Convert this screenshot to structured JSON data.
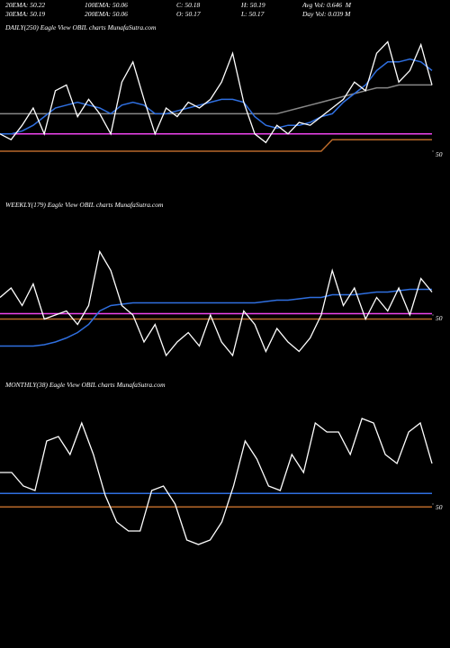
{
  "header": {
    "stats": [
      [
        "20EMA: 50.22",
        "100EMA: 50.06",
        "C: 50.18",
        "H: 50.19",
        "Avg Vol: 0.646  M"
      ],
      [
        "30EMA: 50.19",
        "200EMA: 50.06",
        "O: 50.17",
        "L: 50.17",
        "Day Vol: 0.039 M"
      ]
    ]
  },
  "chart_data": [
    {
      "type": "line",
      "title": "DAILY(250) Eagle  View  OBIL  charts MunafaSutra.com",
      "ylim": [
        49.9,
        50.4
      ],
      "yticks": [
        50
      ],
      "series": [
        {
          "color": "#888888",
          "values": [
            50.13,
            50.13,
            50.13,
            50.13,
            50.13,
            50.13,
            50.13,
            50.13,
            50.13,
            50.13,
            50.13,
            50.13,
            50.13,
            50.13,
            50.13,
            50.13,
            50.13,
            50.13,
            50.13,
            50.13,
            50.13,
            50.13,
            50.13,
            50.13,
            50.13,
            50.13,
            50.14,
            50.15,
            50.16,
            50.17,
            50.18,
            50.19,
            50.2,
            50.21,
            50.22,
            50.22,
            50.23,
            50.23,
            50.23,
            50.23
          ]
        },
        {
          "color": "#ee44ee",
          "values": [
            50.06,
            50.06,
            50.06,
            50.06,
            50.06,
            50.06,
            50.06,
            50.06,
            50.06,
            50.06,
            50.06,
            50.06,
            50.06,
            50.06,
            50.06,
            50.06,
            50.06,
            50.06,
            50.06,
            50.06,
            50.06,
            50.06,
            50.06,
            50.06,
            50.06,
            50.06,
            50.06,
            50.06,
            50.06,
            50.06,
            50.06,
            50.06,
            50.06,
            50.06,
            50.06,
            50.06,
            50.06,
            50.06,
            50.06,
            50.06
          ]
        },
        {
          "color": "#b8692a",
          "values": [
            50.0,
            50.0,
            50.0,
            50.0,
            50.0,
            50.0,
            50.0,
            50.0,
            50.0,
            50.0,
            50.0,
            50.0,
            50.0,
            50.0,
            50.0,
            50.0,
            50.0,
            50.0,
            50.0,
            50.0,
            50.0,
            50.0,
            50.0,
            50.0,
            50.0,
            50.0,
            50.0,
            50.0,
            50.0,
            50.0,
            50.04,
            50.04,
            50.04,
            50.04,
            50.04,
            50.04,
            50.04,
            50.04,
            50.04,
            50.04
          ]
        },
        {
          "color": "#2f6fe0",
          "values": [
            50.06,
            50.06,
            50.07,
            50.09,
            50.12,
            50.15,
            50.16,
            50.17,
            50.16,
            50.15,
            50.13,
            50.16,
            50.17,
            50.16,
            50.13,
            50.13,
            50.14,
            50.15,
            50.16,
            50.17,
            50.18,
            50.18,
            50.17,
            50.12,
            50.09,
            50.08,
            50.09,
            50.09,
            50.1,
            50.12,
            50.13,
            50.17,
            50.2,
            50.23,
            50.28,
            50.31,
            50.31,
            50.32,
            50.31,
            50.28
          ]
        },
        {
          "color": "#ffffff",
          "values": [
            50.06,
            50.04,
            50.09,
            50.15,
            50.06,
            50.21,
            50.23,
            50.12,
            50.18,
            50.13,
            50.06,
            50.24,
            50.31,
            50.18,
            50.06,
            50.15,
            50.12,
            50.17,
            50.15,
            50.18,
            50.24,
            50.34,
            50.17,
            50.06,
            50.03,
            50.09,
            50.06,
            50.1,
            50.09,
            50.12,
            50.15,
            50.18,
            50.24,
            50.21,
            50.34,
            50.38,
            50.24,
            50.28,
            50.37,
            50.23
          ]
        }
      ]
    },
    {
      "type": "line",
      "title": "WEEKLY(179) Eagle  View  OBIL  charts MunafaSutra.com",
      "ylim": [
        49.6,
        50.5
      ],
      "yticks": [
        50
      ],
      "series": [
        {
          "color": "#ee44ee",
          "values": [
            50.01,
            50.01,
            50.01,
            50.01,
            50.01,
            50.01,
            50.01,
            50.01,
            50.01,
            50.01,
            50.01,
            50.01,
            50.01,
            50.01,
            50.01,
            50.01,
            50.01,
            50.01,
            50.01,
            50.01,
            50.01,
            50.01,
            50.01,
            50.01,
            50.01,
            50.01,
            50.01,
            50.01,
            50.01,
            50.01,
            50.01,
            50.01,
            50.01,
            50.01,
            50.01,
            50.01,
            50.01,
            50.01,
            50.01,
            50.01
          ]
        },
        {
          "color": "#b8692a",
          "values": [
            49.97,
            49.97,
            49.97,
            49.97,
            49.97,
            49.97,
            49.97,
            49.97,
            49.97,
            49.97,
            49.97,
            49.97,
            49.97,
            49.97,
            49.97,
            49.97,
            49.97,
            49.97,
            49.97,
            49.97,
            49.97,
            49.97,
            49.97,
            49.97,
            49.97,
            49.97,
            49.97,
            49.97,
            49.97,
            49.97,
            49.97,
            49.97,
            49.97,
            49.97,
            49.97,
            49.97,
            49.97,
            49.97,
            49.97,
            49.97
          ]
        },
        {
          "color": "#2f6fe0",
          "values": [
            49.77,
            49.77,
            49.77,
            49.77,
            49.78,
            49.8,
            49.83,
            49.87,
            49.93,
            50.03,
            50.07,
            50.08,
            50.09,
            50.09,
            50.09,
            50.09,
            50.09,
            50.09,
            50.09,
            50.09,
            50.09,
            50.09,
            50.09,
            50.09,
            50.1,
            50.11,
            50.11,
            50.12,
            50.13,
            50.13,
            50.15,
            50.15,
            50.15,
            50.16,
            50.17,
            50.17,
            50.18,
            50.19,
            50.19,
            50.19
          ]
        },
        {
          "color": "#ffffff",
          "values": [
            50.13,
            50.2,
            50.07,
            50.23,
            49.97,
            50.0,
            50.03,
            49.93,
            50.07,
            50.47,
            50.33,
            50.07,
            50.0,
            49.8,
            49.93,
            49.7,
            49.8,
            49.87,
            49.77,
            50.0,
            49.8,
            49.7,
            50.03,
            49.93,
            49.73,
            49.9,
            49.8,
            49.73,
            49.83,
            50.0,
            50.33,
            50.07,
            50.2,
            49.97,
            50.13,
            50.03,
            50.2,
            50.0,
            50.27,
            50.17
          ]
        }
      ]
    },
    {
      "type": "line",
      "title": "MONTHLY(38) Eagle  View  OBIL  charts MunafaSutra.com",
      "ylim": [
        49.7,
        50.6
      ],
      "yticks": [
        50
      ],
      "series": [
        {
          "color": "#b8692a",
          "values": [
            49.98,
            49.98,
            49.98,
            49.98,
            49.98,
            49.98,
            49.98,
            49.98,
            49.98,
            49.98,
            49.98,
            49.98,
            49.98,
            49.98,
            49.98,
            49.98,
            49.98,
            49.98,
            49.98,
            49.98,
            49.98,
            49.98,
            49.98,
            49.98,
            49.98,
            49.98,
            49.98,
            49.98,
            49.98,
            49.98,
            49.98,
            49.98,
            49.98,
            49.98,
            49.98,
            49.98,
            49.98,
            49.98
          ]
        },
        {
          "color": "#2f6fe0",
          "values": [
            50.07,
            50.07,
            50.07,
            50.07,
            50.07,
            50.07,
            50.07,
            50.07,
            50.07,
            50.07,
            50.07,
            50.07,
            50.07,
            50.07,
            50.07,
            50.07,
            50.07,
            50.07,
            50.07,
            50.07,
            50.07,
            50.07,
            50.07,
            50.07,
            50.07,
            50.07,
            50.07,
            50.07,
            50.07,
            50.07,
            50.07,
            50.07,
            50.07,
            50.07,
            50.07,
            50.07,
            50.07,
            50.07
          ]
        },
        {
          "color": "#ffffff",
          "values": [
            50.21,
            50.21,
            50.12,
            50.09,
            50.42,
            50.45,
            50.33,
            50.54,
            50.33,
            50.06,
            49.88,
            49.82,
            49.82,
            50.09,
            50.12,
            50.0,
            49.76,
            49.73,
            49.76,
            49.88,
            50.12,
            50.42,
            50.3,
            50.12,
            50.09,
            50.33,
            50.21,
            50.54,
            50.48,
            50.48,
            50.33,
            50.57,
            50.54,
            50.33,
            50.27,
            50.48,
            50.54,
            50.27
          ]
        }
      ]
    }
  ]
}
